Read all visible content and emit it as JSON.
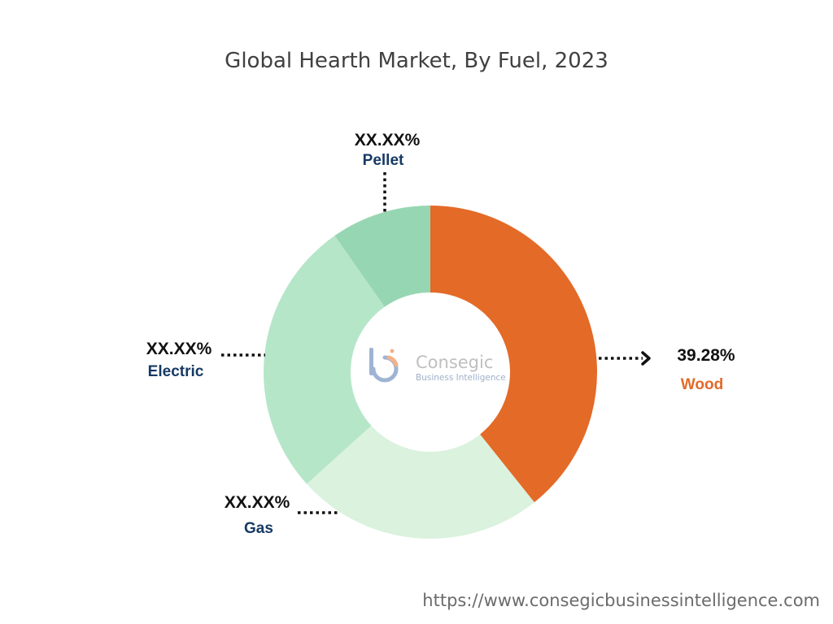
{
  "chart_data": {
    "type": "pie",
    "title": "Global Hearth Market, By Fuel, 2023",
    "categories": [
      "Wood",
      "Gas",
      "Electric",
      "Pellet"
    ],
    "values": [
      39.28,
      24.0,
      27.0,
      9.72
    ],
    "value_labels": [
      "39.28%",
      "XX.XX%",
      "XX.XX%",
      "XX.XX%"
    ],
    "colors": [
      "#e46a28",
      "#daf2de",
      "#b5e6c8",
      "#97d6b2"
    ],
    "label_colors": [
      "#e46a28",
      "#163a64",
      "#163a64",
      "#163a64"
    ],
    "legend": "none"
  },
  "logo": {
    "name": "Consegic",
    "subtitle": "Business Intelligence"
  },
  "source_url": "https://www.consegicbusinessintelligence.com"
}
